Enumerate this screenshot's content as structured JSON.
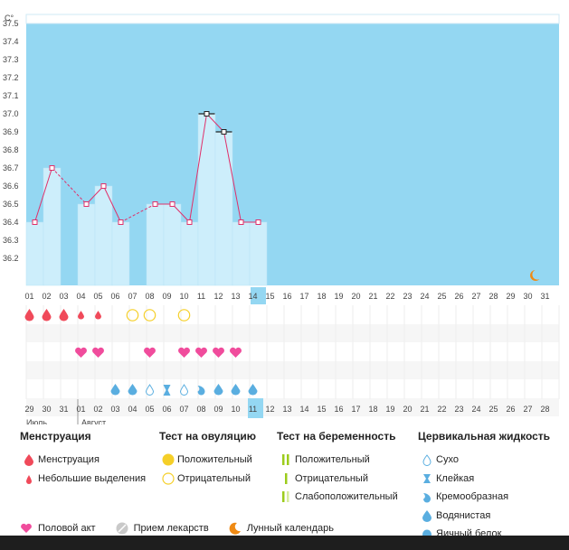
{
  "chart_data": {
    "type": "line",
    "ylabel": "C°",
    "yticks": [
      "37.5",
      "37.4",
      "37.3",
      "37.2",
      "37.1",
      "37.0",
      "36.9",
      "36.8",
      "36.7",
      "36.6",
      "36.5",
      "36.4",
      "36.3",
      "36.2"
    ],
    "ylim": [
      36.2,
      37.55
    ],
    "days": [
      "01",
      "02",
      "03",
      "04",
      "05",
      "06",
      "07",
      "08",
      "09",
      "10",
      "11",
      "12",
      "13",
      "14",
      "15",
      "16",
      "17",
      "18",
      "19",
      "20",
      "21",
      "22",
      "23",
      "24",
      "25",
      "26",
      "27",
      "28",
      "29",
      "30",
      "31"
    ],
    "today": "14",
    "temps": [
      36.4,
      36.7,
      null,
      36.5,
      36.6,
      36.4,
      null,
      36.5,
      36.5,
      36.4,
      37.0,
      36.9,
      36.4,
      36.4
    ],
    "lunar_day": "30"
  },
  "cycle_days": [
    "29",
    "30",
    "31",
    "01",
    "02",
    "03",
    "04",
    "05",
    "06",
    "07",
    "08",
    "09",
    "10",
    "11",
    "12",
    "13",
    "14",
    "15",
    "16",
    "17",
    "18",
    "19",
    "20",
    "21",
    "22",
    "23",
    "24",
    "25",
    "26",
    "27",
    "28"
  ],
  "cycle_highlight": [
    "01",
    "02",
    "08",
    "09",
    "15",
    "16",
    "22",
    "23"
  ],
  "cycle_today": "11",
  "months": {
    "prev": "Июль",
    "next": "Август"
  },
  "rows": {
    "menstruation": [
      "big",
      "big",
      "big",
      "small",
      "small",
      null,
      null,
      null,
      null,
      null,
      null,
      null,
      null,
      null
    ],
    "ovulation": [
      null,
      null,
      null,
      null,
      null,
      null,
      "neg",
      "neg",
      null,
      "neg",
      null,
      null,
      null,
      null
    ],
    "intercourse": [
      null,
      null,
      null,
      1,
      1,
      null,
      null,
      1,
      null,
      1,
      1,
      1,
      1,
      null
    ],
    "fluid": [
      null,
      null,
      null,
      null,
      null,
      "water",
      "water",
      "dry",
      "sticky",
      "dry",
      "creamy",
      "water",
      "water",
      "water"
    ]
  },
  "legend": {
    "menstruation": {
      "title": "Менструация",
      "items": [
        "Менструация",
        "Небольшие выделения"
      ]
    },
    "ovulation": {
      "title": "Тест на овуляцию",
      "items": [
        "Положительный",
        "Отрицательный"
      ]
    },
    "pregnancy": {
      "title": "Тест на беременность",
      "items": [
        "Положительный",
        "Отрицательный",
        "Слабоположительный"
      ]
    },
    "fluid": {
      "title": "Цервикальная жидкость",
      "items": [
        "Сухо",
        "Клейкая",
        "Кремообразная",
        "Водянистая",
        "Яичный белок"
      ]
    },
    "bottom": [
      "Половой акт",
      "Прием лекарств",
      "Лунный календарь"
    ]
  },
  "colors": {
    "sky": "#94d7f2",
    "bar": "#cdeefb",
    "line": "#e0306a",
    "drop": "#f04a5a",
    "heart": "#f04c9c",
    "ovu_pos": "#f5cf28",
    "ovu_neg": "#f5cf28",
    "preg": "#9ccc1c",
    "fluid": "#5aaee0",
    "moon": "#ef8a14"
  }
}
